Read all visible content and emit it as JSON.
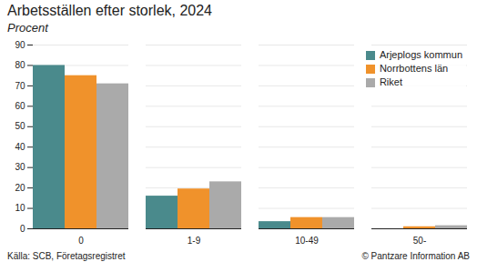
{
  "chart_data": {
    "type": "bar",
    "title": "Arbetsställen efter storlek, 2024",
    "subtitle": "Procent",
    "categories": [
      "0",
      "1-9",
      "10-49",
      "50-"
    ],
    "series": [
      {
        "name": "Arjeplogs kommun",
        "color": "#4a8a8c",
        "values": [
          80,
          16,
          3.5,
          0
        ]
      },
      {
        "name": "Norrbottens län",
        "color": "#f0922b",
        "values": [
          75,
          19.5,
          5.5,
          1
        ]
      },
      {
        "name": "Riket",
        "color": "#aaaaaa",
        "values": [
          71,
          23,
          5.5,
          1.5
        ]
      }
    ],
    "ylim": [
      0,
      90
    ],
    "yticks": [
      0,
      10,
      20,
      30,
      40,
      50,
      60,
      70,
      80,
      90
    ],
    "grid": true,
    "legend": "upper right",
    "annotations": [
      "Källa: SCB, Företagsregistret",
      "© Pantzare Information AB"
    ]
  }
}
